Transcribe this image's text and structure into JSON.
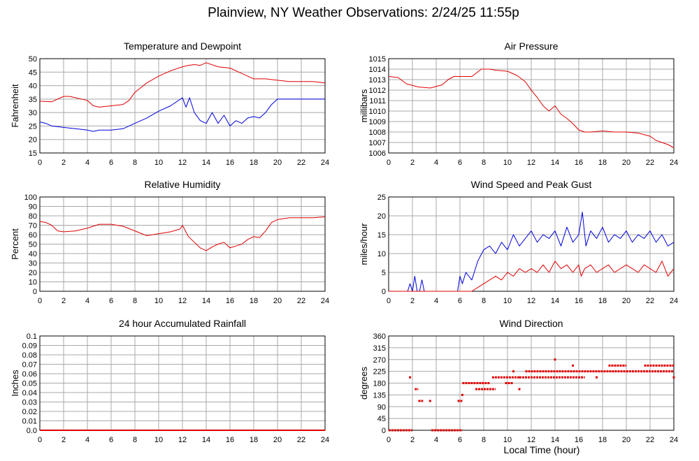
{
  "title": "Plainview, NY Weather Observations: 2/24/25 11:55p",
  "xlabel": "Local Time (hour)",
  "colors": {
    "red": "#e00000",
    "blue": "#0000dd",
    "grid": "#a8a8a8",
    "axis": "#000000"
  },
  "chart_data": [
    {
      "id": "temp",
      "type": "line",
      "title": "Temperature and Dewpoint",
      "xlabel": "",
      "ylabel": "Fahrenheit",
      "xlim": [
        0,
        24
      ],
      "ylim": [
        15,
        50
      ],
      "xticks": [
        0,
        2,
        4,
        6,
        8,
        10,
        12,
        14,
        16,
        18,
        20,
        22,
        24
      ],
      "yticks": [
        15,
        20,
        25,
        30,
        35,
        40,
        45,
        50
      ],
      "grid": true,
      "series": [
        {
          "color": "red",
          "x": [
            0,
            1,
            2,
            2.5,
            3,
            4,
            4.5,
            5,
            6,
            7,
            7.5,
            8,
            9,
            10,
            11,
            12,
            12.5,
            13,
            13.5,
            14,
            15,
            16,
            17,
            18,
            19,
            20,
            21,
            22,
            23,
            24
          ],
          "y": [
            34.2,
            34,
            36,
            36,
            35.5,
            34.5,
            32.5,
            32,
            32.5,
            33,
            34.5,
            37.5,
            41,
            43.5,
            45.5,
            47,
            47.5,
            47.8,
            47.5,
            48.5,
            47,
            46.5,
            44.5,
            42.5,
            42.5,
            42,
            41.5,
            41.5,
            41.5,
            41
          ]
        },
        {
          "color": "blue",
          "x": [
            0,
            0.5,
            1,
            2,
            3,
            4,
            4.5,
            5,
            6,
            7,
            8,
            9,
            10,
            11,
            12,
            12.3,
            12.6,
            13,
            13.5,
            14,
            14.5,
            15,
            15.5,
            16,
            16.5,
            17,
            17.5,
            18,
            18.5,
            19,
            19.5,
            20,
            21,
            22,
            23,
            24
          ],
          "y": [
            26.5,
            26,
            25,
            24.5,
            24,
            23.5,
            23,
            23.5,
            23.5,
            24,
            26,
            28,
            30.5,
            32.5,
            35.5,
            32,
            35.5,
            30,
            27,
            26,
            30,
            26,
            29,
            25,
            27,
            26,
            28,
            28.5,
            28,
            30,
            33,
            35,
            35,
            35,
            35,
            35
          ]
        }
      ]
    },
    {
      "id": "pressure",
      "type": "line",
      "title": "Air Pressure",
      "xlabel": "",
      "ylabel": "millibars",
      "xlim": [
        0,
        24
      ],
      "ylim": [
        1006,
        1015
      ],
      "xticks": [
        0,
        2,
        4,
        6,
        8,
        10,
        12,
        14,
        16,
        18,
        20,
        22,
        24
      ],
      "yticks": [
        1006,
        1007,
        1008,
        1009,
        1010,
        1011,
        1012,
        1013,
        1014,
        1015
      ],
      "grid": true,
      "series": [
        {
          "color": "red",
          "x": [
            0,
            0.8,
            1.5,
            2.5,
            3.5,
            4.5,
            5,
            5.5,
            6,
            7,
            7.8,
            8.5,
            9,
            10,
            10.8,
            11.5,
            12,
            12.5,
            13,
            13.5,
            14,
            14.5,
            15,
            15.5,
            16,
            16.5,
            17,
            18,
            19,
            20,
            21,
            22,
            22.5,
            23,
            23.5,
            24
          ],
          "y": [
            1013.3,
            1013.2,
            1012.6,
            1012.3,
            1012.2,
            1012.5,
            1013,
            1013.3,
            1013.3,
            1013.3,
            1014,
            1014,
            1013.9,
            1013.8,
            1013.4,
            1012.8,
            1012,
            1011.3,
            1010.5,
            1010,
            1010.5,
            1009.7,
            1009.3,
            1008.8,
            1008.2,
            1008,
            1008,
            1008.1,
            1008,
            1008,
            1007.9,
            1007.6,
            1007.2,
            1007,
            1006.8,
            1006.5
          ]
        }
      ]
    },
    {
      "id": "humidity",
      "type": "line",
      "title": "Relative Humidity",
      "xlabel": "",
      "ylabel": "Percent",
      "xlim": [
        0,
        24
      ],
      "ylim": [
        0,
        100
      ],
      "xticks": [
        0,
        2,
        4,
        6,
        8,
        10,
        12,
        14,
        16,
        18,
        20,
        22,
        24
      ],
      "yticks": [
        0,
        10,
        20,
        30,
        40,
        50,
        60,
        70,
        80,
        90,
        100
      ],
      "grid": true,
      "series": [
        {
          "color": "red",
          "x": [
            0,
            0.5,
            1,
            1.5,
            2,
            3,
            4,
            5,
            6,
            7,
            8,
            9,
            10,
            11,
            11.8,
            12,
            12.5,
            13,
            13.5,
            14,
            14.5,
            15,
            15.5,
            16,
            16.5,
            17,
            17.5,
            18,
            18.5,
            19,
            19.5,
            20,
            21,
            22,
            23,
            24
          ],
          "y": [
            74,
            73,
            70,
            64,
            63,
            64,
            67,
            71,
            71,
            69,
            64,
            59,
            61,
            63,
            66,
            70,
            58,
            52,
            46,
            43,
            47,
            50,
            52,
            46,
            48,
            50,
            55,
            58,
            57,
            64,
            73,
            76,
            78,
            78,
            78,
            79
          ]
        }
      ]
    },
    {
      "id": "wind",
      "type": "line",
      "title": "Wind Speed and Peak Gust",
      "xlabel": "",
      "ylabel": "miles/hour",
      "xlim": [
        0,
        24
      ],
      "ylim": [
        0,
        25
      ],
      "xticks": [
        0,
        2,
        4,
        6,
        8,
        10,
        12,
        14,
        16,
        18,
        20,
        22,
        24
      ],
      "yticks": [
        0,
        5,
        10,
        15,
        20,
        25
      ],
      "grid": true,
      "series": [
        {
          "color": "blue",
          "x": [
            0,
            1.6,
            1.8,
            2,
            2.2,
            2.4,
            2.6,
            2.8,
            3,
            3.2,
            5.8,
            6,
            6.2,
            6.5,
            7,
            7.5,
            8,
            8.5,
            9,
            9.5,
            10,
            10.5,
            11,
            11.5,
            12,
            12.5,
            13,
            13.5,
            14,
            14.5,
            15,
            15.5,
            16,
            16.3,
            16.6,
            17,
            17.5,
            18,
            18.5,
            19,
            19.5,
            20,
            20.5,
            21,
            21.5,
            22,
            22.5,
            23,
            23.5,
            24
          ],
          "y": [
            0,
            0,
            2,
            0,
            4,
            0,
            0,
            3,
            0,
            0,
            0,
            4,
            2,
            5,
            3,
            8,
            11,
            12,
            10,
            13,
            11,
            15,
            12,
            14,
            16,
            13,
            15,
            14,
            16,
            12,
            17,
            13,
            15,
            21,
            12,
            16,
            14,
            17,
            13,
            15,
            14,
            16,
            13,
            15,
            14,
            16,
            13,
            15,
            12,
            13
          ]
        },
        {
          "color": "red",
          "x": [
            0,
            7,
            7.5,
            8,
            8.5,
            9,
            9.5,
            10,
            10.5,
            11,
            11.5,
            12,
            12.5,
            13,
            13.5,
            14,
            14.5,
            15,
            15.5,
            16,
            16.2,
            16.5,
            17,
            17.5,
            18,
            18.5,
            19,
            19.5,
            20,
            20.5,
            21,
            21.5,
            22,
            22.5,
            23,
            23.5,
            24
          ],
          "y": [
            0,
            0,
            1,
            2,
            3,
            4,
            3,
            5,
            4,
            6,
            5,
            6,
            5,
            7,
            5,
            8,
            6,
            7,
            5,
            7,
            4,
            6,
            7,
            5,
            6,
            7,
            5,
            6,
            7,
            6,
            5,
            7,
            6,
            5,
            8,
            4,
            6
          ]
        }
      ]
    },
    {
      "id": "rain",
      "type": "line",
      "title": "24 hour Accumulated Rainfall",
      "xlabel": "",
      "ylabel": "Inches",
      "xlim": [
        0,
        24
      ],
      "ylim": [
        0,
        0.1
      ],
      "xticks": [
        0,
        2,
        4,
        6,
        8,
        10,
        12,
        14,
        16,
        18,
        20,
        22,
        24
      ],
      "yticks": [
        "0.0",
        "0.01",
        "0.02",
        "0.03",
        "0.04",
        "0.05",
        "0.06",
        "0.07",
        "0.08",
        "0.09",
        "0.1"
      ],
      "grid": true,
      "series": [
        {
          "color": "red",
          "x": [
            0,
            24
          ],
          "y": [
            0,
            0
          ]
        }
      ]
    },
    {
      "id": "direction",
      "type": "scatter",
      "title": "Wind Direction",
      "xlabel": "Local Time (hour)",
      "ylabel": "degrees",
      "xlim": [
        0,
        24
      ],
      "ylim": [
        0,
        360
      ],
      "xticks": [
        0,
        2,
        4,
        6,
        8,
        10,
        12,
        14,
        16,
        18,
        20,
        22,
        24
      ],
      "yticks": [
        0,
        45,
        90,
        135,
        180,
        225,
        270,
        315,
        360
      ],
      "grid": true,
      "series": [
        {
          "color": "red",
          "segments": [
            {
              "x0": 0,
              "x1": 2,
              "y": 0
            },
            {
              "x0": 3.6,
              "x1": 6.2,
              "y": 0
            },
            {
              "x0": 2.2,
              "x1": 2.5,
              "y": 157
            },
            {
              "x0": 2.5,
              "x1": 2.9,
              "y": 112
            },
            {
              "x0": 3.4,
              "x1": 3.6,
              "y": 112
            },
            {
              "x0": 5.8,
              "x1": 6.2,
              "y": 112
            },
            {
              "x0": 6.2,
              "x1": 8.5,
              "y": 180
            },
            {
              "x0": 7.3,
              "x1": 9,
              "y": 157
            },
            {
              "x0": 8.7,
              "x1": 11,
              "y": 202
            },
            {
              "x0": 9.8,
              "x1": 10.5,
              "y": 180
            },
            {
              "x0": 11,
              "x1": 16.5,
              "y": 202
            },
            {
              "x0": 11.5,
              "x1": 20,
              "y": 225
            },
            {
              "x0": 18.5,
              "x1": 20,
              "y": 247
            },
            {
              "x0": 20,
              "x1": 24,
              "y": 225
            },
            {
              "x0": 21.5,
              "x1": 24,
              "y": 247
            }
          ],
          "points": [
            {
              "x": 1.8,
              "y": 202
            },
            {
              "x": 6.2,
              "y": 135
            },
            {
              "x": 10.5,
              "y": 225
            },
            {
              "x": 11,
              "y": 157
            },
            {
              "x": 14,
              "y": 270
            },
            {
              "x": 15.5,
              "y": 247
            },
            {
              "x": 17.5,
              "y": 202
            },
            {
              "x": 24,
              "y": 202
            }
          ]
        }
      ]
    }
  ]
}
